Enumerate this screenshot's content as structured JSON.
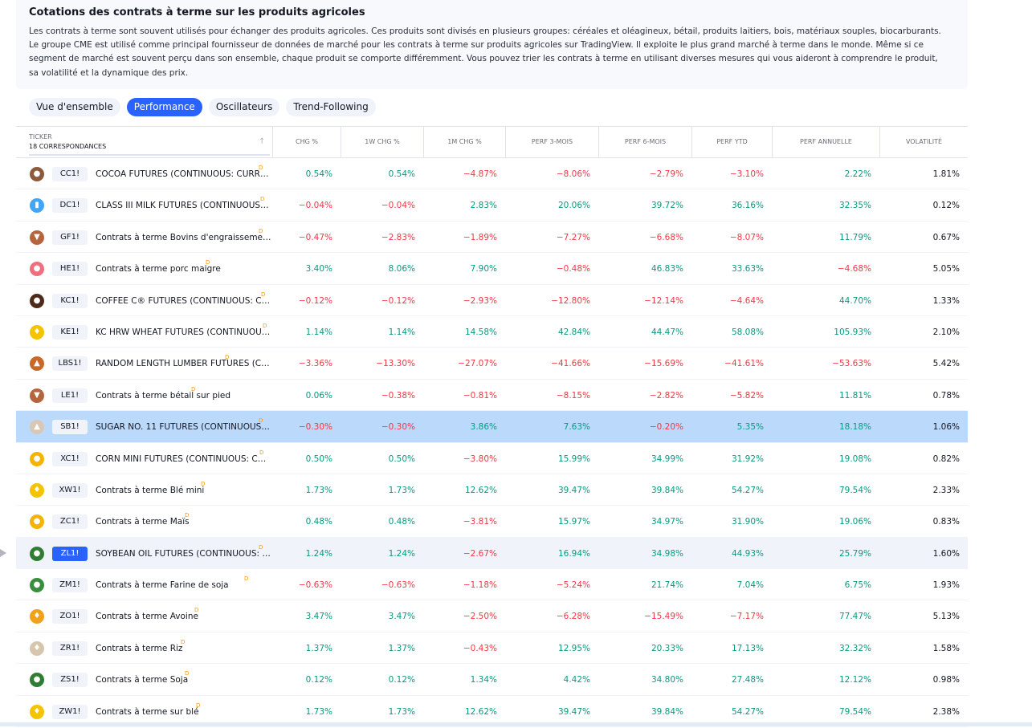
{
  "section": {
    "title": "Cotations des contrats à terme sur les produits agricoles",
    "description": "Les contrats à terme sont souvent utilisés pour échanger des produits agricoles. Ces produits sont divisés en plusieurs groupes: céréales et oléagineux, bétail, produits laitiers, bois, matériaux souples, biocarburants. Le groupe CME est utilisé comme principal fournisseur de données de marché pour les contrats à terme sur produits agricoles sur TradingView. Il exploite le plus grand marché à terme dans le monde. Même si ce segment de marché est souvent perçu dans son ensemble, chaque produit se comporte différemment. Vous pouvez trier les contrats à terme en utilisant diverses mesures qui vous aideront à comprendre le produit, sa volatilité et la dynamique des prix."
  },
  "tabs": [
    {
      "label": "Vue d'ensemble",
      "active": false
    },
    {
      "label": "Performance",
      "active": true
    },
    {
      "label": "Oscillateurs",
      "active": false
    },
    {
      "label": "Trend-Following",
      "active": false
    }
  ],
  "table": {
    "ticker_header": "TICKER",
    "matches": "18 CORRESPONDANCES",
    "sort_icon": "↑",
    "columns": [
      "CHG %",
      "1W CHG %",
      "1M CHG %",
      "PERF 3-MOIS",
      "PERF 6-MOIS",
      "PERF YTD",
      "PERF ANNUELLE",
      "VOLATILITÉ"
    ],
    "delay_mark": "D",
    "rows": [
      {
        "ticker": "CC1!",
        "name": "COCOA FUTURES (CONTINUOUS: CURR…",
        "icon": "cocoa-icon",
        "color": "#8d5a3b",
        "glyph": "●",
        "values": [
          "0.54%",
          "0.54%",
          "−4.87%",
          "−8.06%",
          "−2.79%",
          "−3.10%",
          "2.22%",
          "1.81%"
        ]
      },
      {
        "ticker": "DC1!",
        "name": "CLASS III MILK FUTURES (CONTINUOUS…",
        "icon": "milk-icon",
        "color": "#42a5f5",
        "glyph": "▮",
        "values": [
          "−0.04%",
          "−0.04%",
          "2.83%",
          "20.06%",
          "39.72%",
          "36.16%",
          "32.35%",
          "0.12%"
        ]
      },
      {
        "ticker": "GF1!",
        "name": "Contrats à terme Bovins d'engraisseme…",
        "icon": "cattle-icon",
        "color": "#b5653e",
        "glyph": "▼",
        "values": [
          "−0.47%",
          "−2.83%",
          "−1.89%",
          "−7.27%",
          "−6.68%",
          "−8.07%",
          "11.79%",
          "0.67%"
        ]
      },
      {
        "ticker": "HE1!",
        "name": "Contrats à terme porc maigre",
        "icon": "pig-icon",
        "color": "#ef6f7e",
        "glyph": "●",
        "values": [
          "3.40%",
          "8.06%",
          "7.90%",
          "−0.48%",
          "46.83%",
          "33.63%",
          "−4.68%",
          "5.05%"
        ]
      },
      {
        "ticker": "KC1!",
        "name": "COFFEE C® FUTURES (CONTINUOUS: C…",
        "icon": "coffee-icon",
        "color": "#4e2a1a",
        "glyph": "●",
        "values": [
          "−0.12%",
          "−0.12%",
          "−2.93%",
          "−12.80%",
          "−12.14%",
          "−4.64%",
          "44.70%",
          "1.33%"
        ]
      },
      {
        "ticker": "KE1!",
        "name": "KC HRW WHEAT FUTURES (CONTINUOU…",
        "icon": "wheat-icon",
        "color": "#f5c400",
        "glyph": "♦",
        "values": [
          "1.14%",
          "1.14%",
          "14.58%",
          "42.84%",
          "44.47%",
          "58.08%",
          "105.93%",
          "2.10%"
        ]
      },
      {
        "ticker": "LBS1!",
        "name": "RANDOM LENGTH LUMBER FUTURES (C…",
        "icon": "tree-icon",
        "color": "#c8692c",
        "glyph": "▲",
        "values": [
          "−3.36%",
          "−13.30%",
          "−27.07%",
          "−41.66%",
          "−15.69%",
          "−41.61%",
          "−53.63%",
          "5.42%"
        ]
      },
      {
        "ticker": "LE1!",
        "name": "Contrats à terme bétail sur pied",
        "icon": "cattle-icon",
        "color": "#b5653e",
        "glyph": "▼",
        "values": [
          "0.06%",
          "−0.38%",
          "−0.81%",
          "−8.15%",
          "−2.82%",
          "−5.82%",
          "11.81%",
          "0.78%"
        ]
      },
      {
        "ticker": "SB1!",
        "name": "SUGAR NO. 11 FUTURES (CONTINUOUS…",
        "icon": "sugar-icon",
        "color": "#d9c7b5",
        "glyph": "▲",
        "values": [
          "−0.30%",
          "−0.30%",
          "3.86%",
          "7.63%",
          "−0.20%",
          "5.35%",
          "18.18%",
          "1.06%"
        ]
      },
      {
        "ticker": "XC1!",
        "name": "CORN MINI FUTURES (CONTINUOUS: C…",
        "icon": "corn-icon",
        "color": "#f5b400",
        "glyph": "●",
        "values": [
          "0.50%",
          "0.50%",
          "−3.80%",
          "15.99%",
          "34.99%",
          "31.92%",
          "19.08%",
          "0.82%"
        ]
      },
      {
        "ticker": "XW1!",
        "name": "Contrats à terme Blé mini",
        "icon": "wheat-icon",
        "color": "#f5c400",
        "glyph": "♦",
        "values": [
          "1.73%",
          "1.73%",
          "12.62%",
          "39.47%",
          "39.84%",
          "54.27%",
          "79.54%",
          "2.33%"
        ]
      },
      {
        "ticker": "ZC1!",
        "name": "Contrats à terme Maïs",
        "icon": "corn-icon",
        "color": "#f5b400",
        "glyph": "●",
        "values": [
          "0.48%",
          "0.48%",
          "−3.81%",
          "15.97%",
          "34.97%",
          "31.90%",
          "19.06%",
          "0.83%"
        ]
      },
      {
        "ticker": "ZL1!",
        "name": "SOYBEAN OIL FUTURES (CONTINUOUS: …",
        "icon": "oil-drop-icon",
        "color": "#2e7d32",
        "glyph": "●",
        "values": [
          "1.24%",
          "1.24%",
          "−2.67%",
          "16.94%",
          "34.98%",
          "44.93%",
          "25.79%",
          "1.60%"
        ]
      },
      {
        "ticker": "ZM1!",
        "name": "Contrats à terme Farine de soja",
        "icon": "soy-icon",
        "color": "#388e3c",
        "glyph": "●",
        "values": [
          "−0.63%",
          "−0.63%",
          "−1.18%",
          "−5.24%",
          "21.74%",
          "7.04%",
          "6.75%",
          "1.93%"
        ]
      },
      {
        "ticker": "ZO1!",
        "name": "Contrats à terme Avoine",
        "icon": "oat-icon",
        "color": "#f0a21a",
        "glyph": "♦",
        "values": [
          "3.47%",
          "3.47%",
          "−2.50%",
          "−6.28%",
          "−15.49%",
          "−7.17%",
          "77.47%",
          "5.13%"
        ]
      },
      {
        "ticker": "ZR1!",
        "name": "Contrats à terme Riz",
        "icon": "rice-icon",
        "color": "#d7c6ae",
        "glyph": "♦",
        "values": [
          "1.37%",
          "1.37%",
          "−0.43%",
          "12.95%",
          "20.33%",
          "17.13%",
          "32.32%",
          "1.58%"
        ]
      },
      {
        "ticker": "ZS1!",
        "name": "Contrats à terme Soja",
        "icon": "soybean-icon",
        "color": "#2e7d32",
        "glyph": "●",
        "values": [
          "0.12%",
          "0.12%",
          "1.34%",
          "4.42%",
          "34.80%",
          "27.48%",
          "12.12%",
          "0.98%"
        ]
      },
      {
        "ticker": "ZW1!",
        "name": "Contrats à terme sur blé",
        "icon": "wheat-icon",
        "color": "#f5c400",
        "glyph": "♦",
        "values": [
          "1.73%",
          "1.73%",
          "12.62%",
          "39.47%",
          "39.84%",
          "54.27%",
          "79.54%",
          "2.38%"
        ]
      }
    ]
  }
}
